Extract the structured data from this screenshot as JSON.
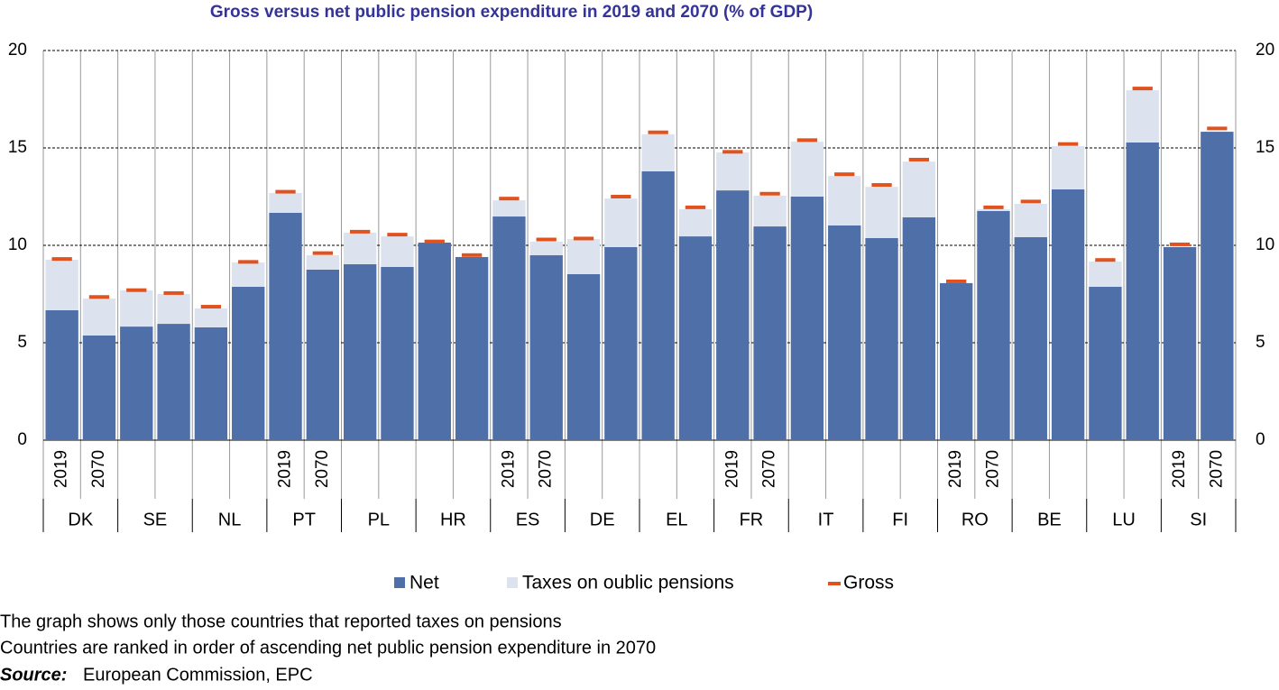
{
  "chart_data": {
    "type": "bar",
    "stacked": true,
    "title": "Gross versus net public pension expenditure in 2019 and 2070 (% of GDP)",
    "groups": [
      "DK",
      "SE",
      "NL",
      "PT",
      "PL",
      "HR",
      "ES",
      "DE",
      "EL",
      "FR",
      "IT",
      "FI",
      "RO",
      "BE",
      "LU",
      "SI"
    ],
    "categories": [
      "2019",
      "2070",
      null,
      null,
      null,
      null,
      "2019",
      "2070",
      null,
      null,
      null,
      null,
      "2019",
      "2070",
      null,
      null,
      null,
      null,
      "2019",
      "2070",
      null,
      null,
      null,
      null,
      "2019",
      "2070",
      null,
      null,
      null,
      null,
      "2019",
      "2070"
    ],
    "series": [
      {
        "name": "Net",
        "color": "#4f6fa8",
        "values": [
          6.67,
          5.37,
          5.83,
          5.97,
          5.79,
          7.87,
          11.67,
          8.75,
          9.03,
          8.89,
          10.14,
          9.4,
          11.48,
          9.49,
          8.52,
          9.91,
          13.8,
          10.46,
          12.82,
          10.97,
          12.5,
          11.02,
          10.37,
          11.44,
          8.06,
          11.76,
          10.42,
          12.87,
          7.87,
          15.28,
          9.91,
          15.83
        ]
      },
      {
        "name": "Taxes on oublic pensions",
        "color": "#dce3ef",
        "values": [
          2.59,
          1.9,
          1.86,
          1.53,
          0.97,
          1.25,
          1.02,
          0.74,
          1.62,
          1.57,
          0,
          0,
          0.83,
          0.7,
          1.8,
          2.49,
          1.9,
          1.39,
          1.95,
          1.58,
          2.82,
          2.54,
          2.63,
          2.86,
          0,
          0.09,
          1.71,
          2.22,
          1.3,
          2.68,
          0,
          0
        ]
      },
      {
        "name": "Gross",
        "color": "#e0531f",
        "marker": "dash",
        "values": [
          9.3,
          7.35,
          7.7,
          7.55,
          6.85,
          9.15,
          12.75,
          9.6,
          10.7,
          10.55,
          10.2,
          9.5,
          12.4,
          10.3,
          10.35,
          12.5,
          15.8,
          11.95,
          14.8,
          12.65,
          15.4,
          13.65,
          13.1,
          14.4,
          8.15,
          11.95,
          12.25,
          15.2,
          9.25,
          18.05,
          10.05,
          16.0
        ]
      }
    ],
    "ylim": [
      0,
      20
    ],
    "yticks": [
      0,
      5,
      10,
      15,
      20
    ],
    "y2lim": [
      0,
      20
    ],
    "y2ticks": [
      0,
      5,
      10,
      15,
      20
    ],
    "grid": true,
    "legend": "bottom",
    "notes": [
      "The graph shows only those countries that reported taxes on pensions",
      "Countries are ranked in order of ascending net public pension expenditure in 2070"
    ],
    "source_label": "Source:",
    "source_text": "European Commission, EPC"
  }
}
